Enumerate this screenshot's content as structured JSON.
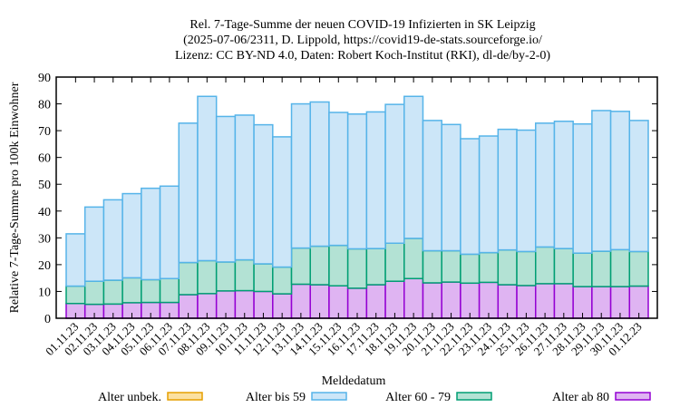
{
  "chart_data": {
    "type": "bar",
    "stacked": true,
    "title": [
      "Rel. 7-Tage-Summe der neuen COVID-19 Infizierten in SK Leipzig",
      "(2025-07-06/2311, D. Lippold, https://covid19-de-stats.sourceforge.io/",
      "Lizenz: CC BY-ND 4.0, Daten: Robert Koch-Institut (RKI), dl-de/by-2-0)"
    ],
    "xlabel": "Meldedatum",
    "ylabel": "Relative 7-Tage-Summe pro 100k Einwohner",
    "ylim": [
      0,
      90
    ],
    "yticks": [
      0,
      10,
      20,
      30,
      40,
      50,
      60,
      70,
      80,
      90
    ],
    "legend_position": "bottom",
    "categories": [
      "01.11.23",
      "02.11.23",
      "03.11.23",
      "04.11.23",
      "05.11.23",
      "06.11.23",
      "07.11.23",
      "08.11.23",
      "09.11.23",
      "10.11.23",
      "11.11.23",
      "12.11.23",
      "13.11.23",
      "14.11.23",
      "15.11.23",
      "16.11.23",
      "17.11.23",
      "18.11.23",
      "19.11.23",
      "20.11.23",
      "21.11.23",
      "22.11.23",
      "23.11.23",
      "24.11.23",
      "25.11.23",
      "26.11.23",
      "27.11.23",
      "28.11.23",
      "29.11.23",
      "30.11.23",
      "01.12.23"
    ],
    "series": [
      {
        "name": "Alter ab 80",
        "fill": "#dfb4f2",
        "stroke": "#9400d3",
        "values": [
          5.5,
          5.2,
          5.3,
          5.8,
          5.9,
          5.9,
          8.8,
          9.2,
          10.2,
          10.3,
          10.0,
          9.1,
          12.7,
          12.5,
          12.1,
          11.2,
          12.5,
          13.8,
          14.8,
          13.2,
          13.5,
          13.1,
          13.4,
          12.5,
          12.2,
          12.9,
          12.9,
          11.8,
          11.8,
          11.8,
          12.0
        ]
      },
      {
        "name": "Alter 60 - 79",
        "fill": "#b3e2d4",
        "stroke": "#009e73",
        "values": [
          6.5,
          8.6,
          8.9,
          9.3,
          8.5,
          8.9,
          12.0,
          12.3,
          10.8,
          11.5,
          10.3,
          10.0,
          13.5,
          14.4,
          15.1,
          14.7,
          13.5,
          14.2,
          15.0,
          12.0,
          11.7,
          10.8,
          11.1,
          13.0,
          12.7,
          13.7,
          13.1,
          12.5,
          13.2,
          13.8,
          12.9
        ]
      },
      {
        "name": "Alter bis 59",
        "fill": "#cce6f8",
        "stroke": "#56b4e9",
        "values": [
          19.5,
          27.7,
          30.0,
          31.4,
          34.1,
          34.5,
          52.0,
          61.3,
          54.3,
          54.0,
          51.9,
          48.6,
          53.8,
          53.8,
          49.6,
          50.3,
          51.0,
          51.8,
          53.0,
          48.6,
          47.1,
          43.1,
          43.5,
          45.0,
          45.3,
          46.2,
          47.5,
          48.2,
          52.5,
          51.6,
          48.9
        ]
      },
      {
        "name": "Alter unbek.",
        "fill": "#fbe0a0",
        "stroke": "#e69f00",
        "values": [
          0,
          0,
          0,
          0,
          0,
          0,
          0,
          0,
          0,
          0,
          0,
          0,
          0,
          0,
          0,
          0,
          0,
          0,
          0,
          0,
          0,
          0,
          0,
          0,
          0,
          0,
          0,
          0,
          0,
          0,
          0
        ]
      }
    ],
    "legend_order": [
      "Alter unbek.",
      "Alter bis 59",
      "Alter 60 - 79",
      "Alter ab 80"
    ]
  }
}
